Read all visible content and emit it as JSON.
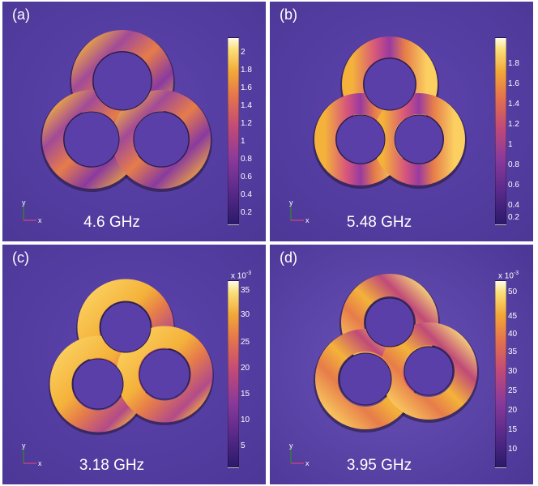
{
  "panels": [
    {
      "label": "(a)",
      "frequency": "4.6 GHz",
      "multiplier": "",
      "ticks": [
        "2",
        "1.8",
        "1.6",
        "1.4",
        "1.2",
        "1",
        "0.8",
        "0.6",
        "0.4",
        "0.2"
      ]
    },
    {
      "label": "(b)",
      "frequency": "5.48 GHz",
      "multiplier": "",
      "ticks": [
        "1.8",
        "1.6",
        "1.4",
        "1.2",
        "1",
        "0.8",
        "0.6",
        "0.4",
        "0.2"
      ]
    },
    {
      "label": "(c)",
      "frequency": "3.18 GHz",
      "multiplier": "x 10",
      "multiplier_exp": "-3",
      "ticks": [
        "35",
        "30",
        "25",
        "20",
        "15",
        "10",
        "5"
      ]
    },
    {
      "label": "(d)",
      "frequency": "3.95 GHz",
      "multiplier": "x 10",
      "multiplier_exp": "-3",
      "ticks": [
        "50",
        "45",
        "40",
        "35",
        "30",
        "25",
        "20",
        "15",
        "10"
      ]
    }
  ],
  "axes": {
    "x": "x",
    "y": "y"
  },
  "colors": {
    "background": "#5a3fa8",
    "hot": "#f4b23a",
    "warm": "#d8577a",
    "cool": "#8a3aa0",
    "edge": "#2a1a3a"
  }
}
